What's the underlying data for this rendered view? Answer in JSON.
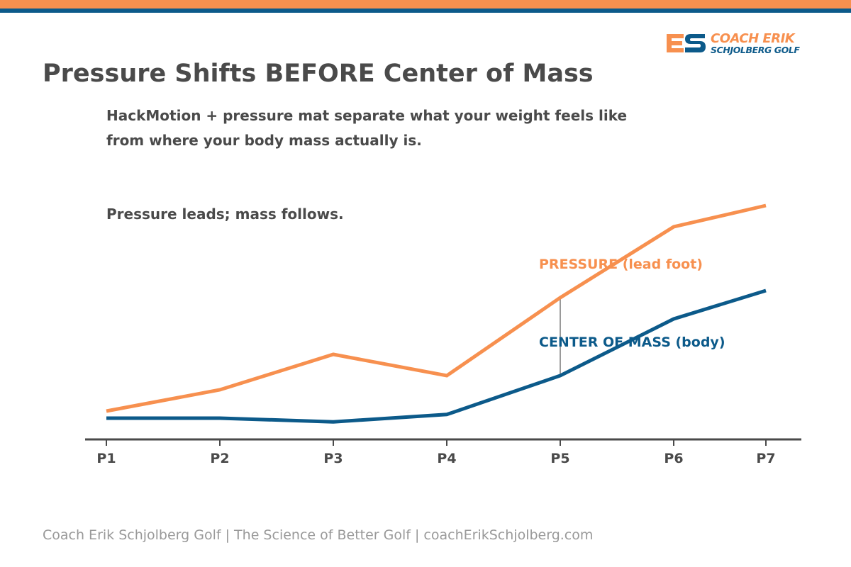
{
  "title": "Pressure Shifts BEFORE Center of Mass",
  "subtitle_lines": [
    "HackMotion + pressure mat separate what your weight feels like",
    "from where your body mass actually is."
  ],
  "note": "Pressure leads; mass follows.",
  "brand": {
    "line1": "COACH ERIK",
    "line2": "SCHJOLBERG GOLF",
    "monogram": "ES"
  },
  "colors": {
    "orange": "#f7904f",
    "blue": "#0c5a8a",
    "axis": "#4a4a4a",
    "connector": "#9a9a9a"
  },
  "footer": "Coach Erik Schjolberg Golf  |  The Science of Better Golf  |  coachErikSchjolberg.com",
  "chart_data": {
    "type": "line",
    "categories": [
      "P1",
      "P2",
      "P3",
      "P4",
      "P5",
      "P6",
      "P7"
    ],
    "series": [
      {
        "name": "PRESSURE (lead foot)",
        "color": "#f7904f",
        "values": [
          1.0,
          1.75,
          3.0,
          2.25,
          5.0,
          7.5,
          8.25
        ]
      },
      {
        "name": "CENTER OF MASS (body)",
        "color": "#0c5a8a",
        "values": [
          0.75,
          0.75,
          0.62,
          0.88,
          2.25,
          4.25,
          5.25
        ]
      }
    ],
    "ylim": [
      0,
      9
    ],
    "grid": false,
    "highlight_category": "P5"
  }
}
